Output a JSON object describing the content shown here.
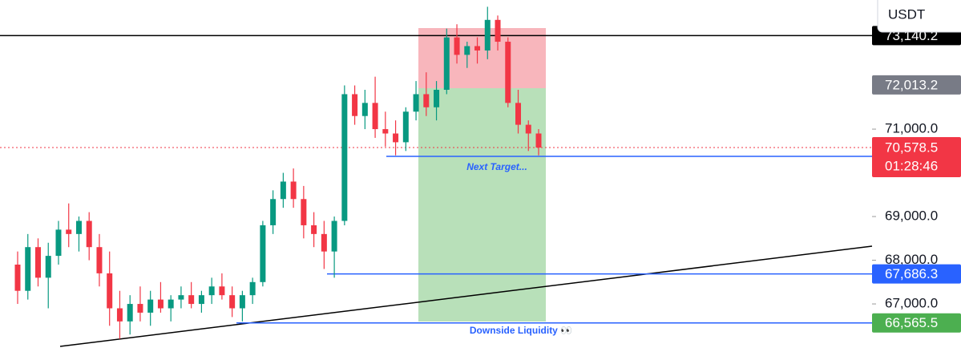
{
  "chart_data": {
    "type": "candlestick",
    "axis_header": "USDT",
    "ylim": [
      65900,
      73955
    ],
    "yticks": [
      {
        "value": 71000,
        "label": "71,000.0"
      },
      {
        "value": 69000,
        "label": "69,000.0"
      },
      {
        "value": 68000,
        "label": "68,000.0"
      },
      {
        "value": 67000,
        "label": "67,000.0"
      }
    ],
    "up_color": "#089981",
    "down_color": "#f23645",
    "ohlc": [
      [
        67900,
        68200,
        67000,
        67300
      ],
      [
        67300,
        68600,
        67100,
        68300
      ],
      [
        68300,
        68500,
        67400,
        67600
      ],
      [
        67600,
        68400,
        66900,
        68100
      ],
      [
        68100,
        68900,
        67900,
        68700
      ],
      [
        68700,
        69300,
        68300,
        68600
      ],
      [
        68600,
        69000,
        68200,
        68900
      ],
      [
        68900,
        69100,
        68000,
        68300
      ],
      [
        68300,
        68600,
        67400,
        67700
      ],
      [
        67700,
        68200,
        66500,
        66900
      ],
      [
        66900,
        67300,
        66200,
        66600
      ],
      [
        66600,
        67200,
        66300,
        67000
      ],
      [
        67000,
        67400,
        66600,
        66800
      ],
      [
        66800,
        67300,
        66500,
        67100
      ],
      [
        67100,
        67500,
        66800,
        66900
      ],
      [
        66900,
        67200,
        66600,
        67100
      ],
      [
        67100,
        67400,
        66900,
        67200
      ],
      [
        67200,
        67500,
        66900,
        67000
      ],
      [
        67000,
        67300,
        66800,
        67200
      ],
      [
        67200,
        67600,
        67000,
        67400
      ],
      [
        67400,
        67700,
        67100,
        67200
      ],
      [
        67200,
        67400,
        66700,
        66900
      ],
      [
        66900,
        67300,
        66600,
        67200
      ],
      [
        67200,
        67600,
        67000,
        67500
      ],
      [
        67500,
        68900,
        67400,
        68800
      ],
      [
        68800,
        69600,
        68600,
        69400
      ],
      [
        69400,
        70000,
        69200,
        69800
      ],
      [
        69800,
        70100,
        69200,
        69400
      ],
      [
        69400,
        69700,
        68500,
        68800
      ],
      [
        68800,
        69100,
        68300,
        68600
      ],
      [
        68600,
        68900,
        67800,
        68200
      ],
      [
        68200,
        69000,
        67600,
        68900
      ],
      [
        68900,
        72000,
        68800,
        71800
      ],
      [
        71800,
        72000,
        71100,
        71300
      ],
      [
        71300,
        71900,
        71000,
        71600
      ],
      [
        71600,
        72200,
        70800,
        71000
      ],
      [
        71000,
        71400,
        70600,
        70900
      ],
      [
        70900,
        71200,
        70400,
        70700
      ],
      [
        70700,
        71500,
        70500,
        71400
      ],
      [
        71400,
        72100,
        71200,
        71800
      ],
      [
        71800,
        72300,
        71300,
        71500
      ],
      [
        71500,
        72100,
        71200,
        71900
      ],
      [
        71900,
        73300,
        71800,
        73100
      ],
      [
        73100,
        73400,
        72500,
        72700
      ],
      [
        72700,
        73000,
        72400,
        72900
      ],
      [
        72900,
        73100,
        72500,
        72800
      ],
      [
        72800,
        73800,
        72600,
        73500
      ],
      [
        73500,
        73600,
        72800,
        73000
      ],
      [
        73000,
        73100,
        71500,
        71600
      ],
      [
        71600,
        71900,
        70900,
        71100
      ],
      [
        71100,
        71200,
        70500,
        70900
      ],
      [
        70900,
        71000,
        70400,
        70578.5
      ]
    ],
    "price_tags": [
      {
        "value": 73140.2,
        "label": "73,140.2",
        "color": "#000000"
      },
      {
        "value": 72013.2,
        "label": "72,013.2",
        "color": "#787b86"
      },
      {
        "value": 67686.3,
        "label": "67,686.3",
        "color": "#2962ff"
      },
      {
        "value": 66565.5,
        "label": "66,565.5",
        "color": "#4caf50"
      }
    ],
    "current_price": {
      "value": 70578.5,
      "label": "70,578.5",
      "countdown": "01:28:46",
      "color": "#f23645"
    },
    "annotations": [
      "Next Target...",
      "Downside Liquidity 👀"
    ]
  }
}
